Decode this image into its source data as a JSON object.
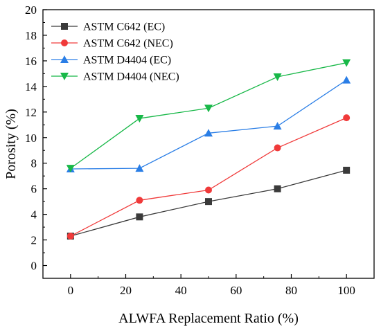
{
  "chart_data": {
    "type": "line",
    "title": "",
    "xlabel": "ALWFA Replacement Ratio (%)",
    "ylabel": "Porosity (%)",
    "xlim": [
      -10,
      110
    ],
    "ylim": [
      -1,
      20
    ],
    "xticks": [
      0,
      20,
      40,
      60,
      80,
      100
    ],
    "yticks": [
      0,
      2,
      4,
      6,
      8,
      10,
      12,
      14,
      16,
      18,
      20
    ],
    "grid": false,
    "legend_position": "top-left",
    "x": [
      0,
      25,
      50,
      75,
      100
    ],
    "series": [
      {
        "name": "ASTM C642 (EC)",
        "values": [
          2.3,
          3.8,
          5.0,
          6.0,
          7.45
        ],
        "color": "#3a3a3a",
        "marker": "square"
      },
      {
        "name": "ASTM C642 (NEC)",
        "values": [
          2.3,
          5.1,
          5.9,
          9.2,
          11.55
        ],
        "color": "#f03a3a",
        "marker": "circle"
      },
      {
        "name": "ASTM D4404 (EC)",
        "values": [
          7.55,
          7.6,
          10.35,
          10.9,
          14.5
        ],
        "color": "#2a7ee6",
        "marker": "triangle-up"
      },
      {
        "name": "ASTM D4404 (NEC)",
        "values": [
          7.6,
          11.5,
          12.3,
          14.75,
          15.85
        ],
        "color": "#18b848",
        "marker": "triangle-down"
      }
    ]
  }
}
